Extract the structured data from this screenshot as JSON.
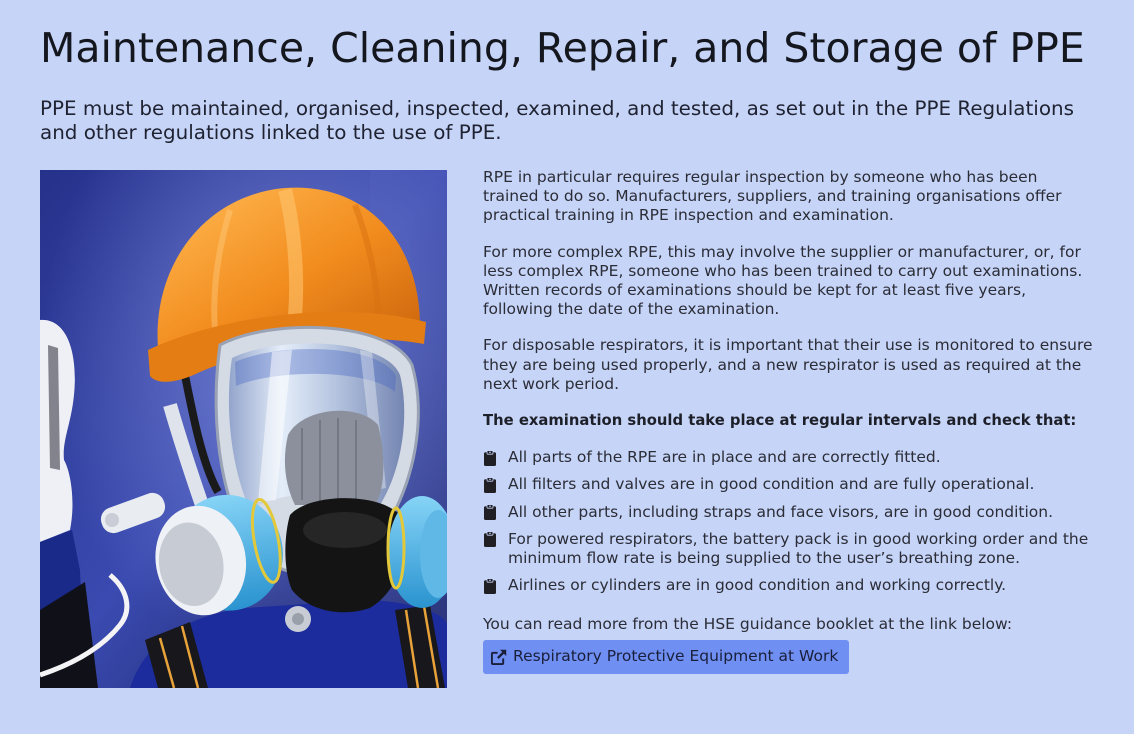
{
  "colors": {
    "page_background": "#c6d4f8",
    "text": "#2b2d36",
    "heading": "#15171f",
    "button_background": "#6f8ff2",
    "button_text": "#1a1f3a",
    "icon": "#1f1f24"
  },
  "icons": {
    "checklist_bullet": "clipboard-icon",
    "link": "external-link-icon"
  },
  "header": {
    "title": "Maintenance, Cleaning, Repair, and Storage of PPE",
    "subtitle": "PPE must be maintained, organised, inspected, examined, and tested, as set out in the PPE Regulations and other regulations linked to the use of PPE."
  },
  "content": {
    "paragraphs": [
      "RPE in particular requires regular inspection by someone who has been trained to do so. Manufacturers, suppliers, and training organisations offer practical training in RPE inspection and examination.",
      "For more complex RPE, this may involve the supplier or manufacturer, or, for less complex RPE, someone who has been trained to carry out examinations. Written records of examinations should be kept for at least five years, following the date of the examination.",
      "For disposable respirators, it is important that their use is monitored to ensure they are being used properly, and a new respirator is used as required at the next work period."
    ],
    "checklist_heading": "The examination should take place at regular intervals and check that:",
    "checklist": [
      "All parts of the RPE are in place and are correctly fitted.",
      "All filters and valves are in good condition and are fully operational.",
      "All other parts, including straps and face visors, are in good condition.",
      "For powered respirators, the battery pack is in good working order and the minimum flow rate is being supplied to the user’s breathing zone.",
      "Airlines or cylinders are in good condition and working correctly."
    ],
    "more_info": "You can read more from the HSE guidance booklet at the link below:",
    "guidance_link": {
      "label": "Respiratory Protective Equipment at Work"
    }
  }
}
